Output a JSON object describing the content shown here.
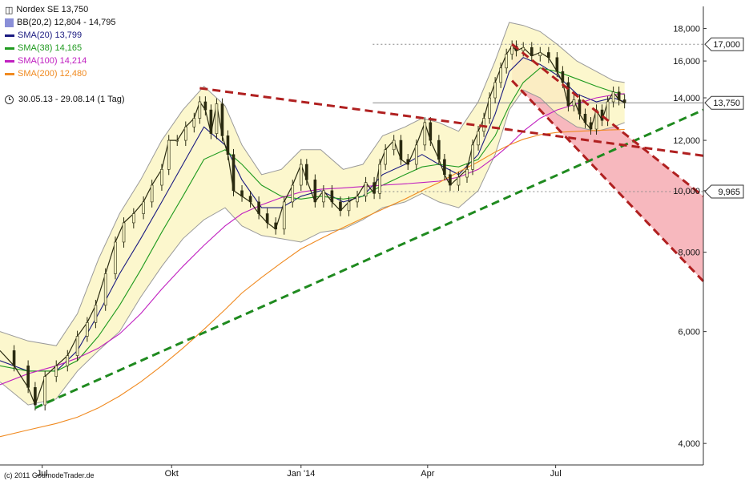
{
  "legend": {
    "title": "Nordex SE 13,750",
    "items": [
      {
        "label": "BB(20,2) 12,804 - 14,795",
        "color": "#8a8fd8",
        "kind": "box"
      },
      {
        "label": "SMA(20) 13,799",
        "color": "#1a1a80",
        "kind": "line"
      },
      {
        "label": "SMA(38) 14,165",
        "color": "#1f9a1f",
        "kind": "line"
      },
      {
        "label": "SMA(100) 14,214",
        "color": "#c020c0",
        "kind": "line"
      },
      {
        "label": "SMA(200) 12,480",
        "color": "#f08a20",
        "kind": "line"
      }
    ]
  },
  "date_range": "30.05.13 - 29.08.14 (1 Tag)",
  "copyright": "(c) 2011 GodmodeTrader.de",
  "chart_data": {
    "type": "line",
    "title": "Nordex SE 13,750",
    "y_scale": "log",
    "ylim": [
      3.7,
      19.5
    ],
    "y_ticks": [
      4,
      6,
      8,
      10,
      12,
      14,
      16,
      18
    ],
    "y_tick_labels": [
      "4,000",
      "6,000",
      "8,000",
      "10,000",
      "12,000",
      "14,000",
      "16,000",
      "18,000"
    ],
    "x_ticks": [
      {
        "label": "Jul",
        "t": 30
      },
      {
        "label": "Okt",
        "t": 122
      },
      {
        "label": "Jan '14",
        "t": 214
      },
      {
        "label": "Apr",
        "t": 304
      },
      {
        "label": "Jul",
        "t": 395
      }
    ],
    "xlim": [
      0,
      500
    ],
    "price_labels": [
      {
        "label": "17,000",
        "value": 17.0,
        "boxed": true,
        "color": "#111111"
      },
      {
        "label": "13,750",
        "value": 13.75,
        "boxed": true,
        "color": "#111111"
      },
      {
        "label": "9,965",
        "value": 9.965,
        "boxed": true,
        "color": "#111111"
      }
    ],
    "horizontal_lines": [
      {
        "value": 17.0,
        "style": "dotted",
        "color": "#888888",
        "from_t": 265
      },
      {
        "value": 13.75,
        "style": "solid",
        "color": "#888888",
        "from_t": 265
      },
      {
        "value": 9.965,
        "style": "dotted",
        "color": "#888888",
        "from_t": 265
      }
    ],
    "price": {
      "name": "Nordex SE",
      "color": "#2a2a10",
      "points": [
        [
          0,
          5.6
        ],
        [
          10,
          5.3
        ],
        [
          20,
          4.9
        ],
        [
          25,
          4.6
        ],
        [
          32,
          5.1
        ],
        [
          40,
          5.3
        ],
        [
          48,
          5.5
        ],
        [
          55,
          5.9
        ],
        [
          62,
          6.2
        ],
        [
          68,
          6.6
        ],
        [
          75,
          7.4
        ],
        [
          82,
          8.3
        ],
        [
          88,
          8.9
        ],
        [
          95,
          9.2
        ],
        [
          102,
          9.6
        ],
        [
          108,
          10.2
        ],
        [
          115,
          10.8
        ],
        [
          120,
          12.0
        ],
        [
          126,
          12.0
        ],
        [
          132,
          12.6
        ],
        [
          138,
          13.0
        ],
        [
          142,
          13.8
        ],
        [
          146,
          13.4
        ],
        [
          150,
          12.3
        ],
        [
          154,
          13.7
        ],
        [
          158,
          12.2
        ],
        [
          162,
          11.4
        ],
        [
          166,
          10.0
        ],
        [
          172,
          9.8
        ],
        [
          178,
          9.6
        ],
        [
          184,
          9.2
        ],
        [
          190,
          8.9
        ],
        [
          196,
          8.7
        ],
        [
          202,
          9.6
        ],
        [
          208,
          10.2
        ],
        [
          214,
          11.0
        ],
        [
          218,
          10.4
        ],
        [
          224,
          9.6
        ],
        [
          230,
          10.0
        ],
        [
          236,
          9.6
        ],
        [
          242,
          9.3
        ],
        [
          248,
          9.6
        ],
        [
          254,
          9.8
        ],
        [
          260,
          10.3
        ],
        [
          266,
          9.9
        ],
        [
          270,
          11.0
        ],
        [
          274,
          11.6
        ],
        [
          280,
          12.0
        ],
        [
          285,
          11.2
        ],
        [
          290,
          11.0
        ],
        [
          296,
          11.8
        ],
        [
          302,
          12.8
        ],
        [
          306,
          12.0
        ],
        [
          312,
          11.2
        ],
        [
          316,
          10.6
        ],
        [
          320,
          10.2
        ],
        [
          326,
          10.5
        ],
        [
          332,
          10.8
        ],
        [
          336,
          11.8
        ],
        [
          340,
          12.4
        ],
        [
          344,
          13.0
        ],
        [
          348,
          14.0
        ],
        [
          352,
          14.8
        ],
        [
          356,
          15.6
        ],
        [
          360,
          16.4
        ],
        [
          364,
          16.9
        ],
        [
          367,
          16.6
        ],
        [
          372,
          16.8
        ],
        [
          378,
          16.3
        ],
        [
          384,
          16.5
        ],
        [
          390,
          16.2
        ],
        [
          396,
          15.4
        ],
        [
          400,
          14.8
        ],
        [
          404,
          13.6
        ],
        [
          408,
          13.9
        ],
        [
          412,
          13.2
        ],
        [
          416,
          12.8
        ],
        [
          420,
          12.5
        ],
        [
          424,
          13.4
        ],
        [
          428,
          12.9
        ],
        [
          432,
          13.8
        ],
        [
          436,
          14.3
        ],
        [
          440,
          13.9
        ],
        [
          444,
          13.75
        ]
      ]
    },
    "bollinger": {
      "name": "BB(20,2)",
      "fill": "#fbf6c4",
      "stroke": "#9a9a9a",
      "upper": [
        [
          0,
          6.0
        ],
        [
          20,
          5.8
        ],
        [
          40,
          5.7
        ],
        [
          55,
          6.4
        ],
        [
          70,
          7.8
        ],
        [
          85,
          9.2
        ],
        [
          100,
          10.4
        ],
        [
          115,
          12.0
        ],
        [
          130,
          13.4
        ],
        [
          145,
          14.6
        ],
        [
          160,
          13.6
        ],
        [
          172,
          11.8
        ],
        [
          186,
          10.6
        ],
        [
          200,
          10.8
        ],
        [
          214,
          11.6
        ],
        [
          228,
          11.6
        ],
        [
          244,
          10.8
        ],
        [
          258,
          11.0
        ],
        [
          272,
          12.2
        ],
        [
          288,
          12.6
        ],
        [
          300,
          13.0
        ],
        [
          312,
          12.8
        ],
        [
          326,
          12.4
        ],
        [
          340,
          13.8
        ],
        [
          352,
          16.0
        ],
        [
          362,
          18.4
        ],
        [
          372,
          18.2
        ],
        [
          384,
          17.8
        ],
        [
          396,
          17.0
        ],
        [
          410,
          16.0
        ],
        [
          424,
          15.4
        ],
        [
          436,
          14.9
        ],
        [
          444,
          14.8
        ]
      ],
      "lower": [
        [
          0,
          5.0
        ],
        [
          20,
          4.6
        ],
        [
          40,
          4.7
        ],
        [
          55,
          5.2
        ],
        [
          70,
          5.6
        ],
        [
          85,
          6.0
        ],
        [
          100,
          6.8
        ],
        [
          115,
          7.6
        ],
        [
          130,
          8.4
        ],
        [
          145,
          9.0
        ],
        [
          160,
          9.4
        ],
        [
          172,
          8.8
        ],
        [
          186,
          8.5
        ],
        [
          200,
          8.4
        ],
        [
          214,
          8.3
        ],
        [
          228,
          8.6
        ],
        [
          244,
          8.7
        ],
        [
          258,
          9.0
        ],
        [
          272,
          9.4
        ],
        [
          288,
          9.6
        ],
        [
          300,
          9.9
        ],
        [
          312,
          9.6
        ],
        [
          326,
          9.4
        ],
        [
          340,
          10.0
        ],
        [
          352,
          11.4
        ],
        [
          362,
          13.4
        ],
        [
          372,
          14.4
        ],
        [
          384,
          14.0
        ],
        [
          396,
          13.2
        ],
        [
          410,
          12.6
        ],
        [
          424,
          12.4
        ],
        [
          436,
          12.6
        ],
        [
          444,
          12.8
        ]
      ]
    },
    "series": [
      {
        "name": "SMA(20)",
        "color": "#1a1a80",
        "points": [
          [
            0,
            5.4
          ],
          [
            20,
            5.2
          ],
          [
            40,
            5.2
          ],
          [
            55,
            5.6
          ],
          [
            70,
            6.4
          ],
          [
            85,
            7.4
          ],
          [
            100,
            8.4
          ],
          [
            115,
            9.6
          ],
          [
            130,
            11.0
          ],
          [
            145,
            12.6
          ],
          [
            160,
            11.8
          ],
          [
            172,
            10.4
          ],
          [
            186,
            9.4
          ],
          [
            200,
            9.4
          ],
          [
            214,
            9.8
          ],
          [
            228,
            10.0
          ],
          [
            244,
            9.6
          ],
          [
            258,
            9.8
          ],
          [
            272,
            10.6
          ],
          [
            288,
            11.0
          ],
          [
            300,
            11.4
          ],
          [
            312,
            11.0
          ],
          [
            326,
            10.6
          ],
          [
            340,
            11.4
          ],
          [
            352,
            13.2
          ],
          [
            362,
            15.4
          ],
          [
            372,
            16.2
          ],
          [
            384,
            15.8
          ],
          [
            396,
            15.2
          ],
          [
            410,
            14.2
          ],
          [
            424,
            13.8
          ],
          [
            436,
            14.0
          ],
          [
            444,
            13.8
          ]
        ]
      },
      {
        "name": "SMA(38)",
        "color": "#1f9a1f",
        "points": [
          [
            0,
            5.3
          ],
          [
            20,
            5.2
          ],
          [
            40,
            5.2
          ],
          [
            55,
            5.4
          ],
          [
            70,
            5.9
          ],
          [
            85,
            6.6
          ],
          [
            100,
            7.5
          ],
          [
            115,
            8.6
          ],
          [
            130,
            9.8
          ],
          [
            145,
            11.2
          ],
          [
            160,
            11.6
          ],
          [
            172,
            11.0
          ],
          [
            186,
            10.2
          ],
          [
            200,
            9.8
          ],
          [
            214,
            9.7
          ],
          [
            228,
            9.8
          ],
          [
            244,
            9.7
          ],
          [
            258,
            9.8
          ],
          [
            272,
            10.2
          ],
          [
            288,
            10.6
          ],
          [
            300,
            10.9
          ],
          [
            312,
            11.0
          ],
          [
            326,
            10.9
          ],
          [
            340,
            11.2
          ],
          [
            352,
            12.2
          ],
          [
            362,
            13.6
          ],
          [
            372,
            14.8
          ],
          [
            384,
            15.6
          ],
          [
            396,
            15.4
          ],
          [
            410,
            15.0
          ],
          [
            424,
            14.6
          ],
          [
            436,
            14.3
          ],
          [
            444,
            14.165
          ]
        ]
      },
      {
        "name": "SMA(100)",
        "color": "#c020c0",
        "points": [
          [
            0,
            4.95
          ],
          [
            20,
            5.15
          ],
          [
            40,
            5.3
          ],
          [
            55,
            5.45
          ],
          [
            70,
            5.65
          ],
          [
            85,
            5.95
          ],
          [
            100,
            6.4
          ],
          [
            115,
            7.0
          ],
          [
            130,
            7.6
          ],
          [
            145,
            8.2
          ],
          [
            160,
            8.8
          ],
          [
            172,
            9.2
          ],
          [
            186,
            9.5
          ],
          [
            200,
            9.75
          ],
          [
            214,
            9.95
          ],
          [
            228,
            10.05
          ],
          [
            244,
            10.1
          ],
          [
            258,
            10.15
          ],
          [
            272,
            10.2
          ],
          [
            288,
            10.25
          ],
          [
            300,
            10.3
          ],
          [
            312,
            10.35
          ],
          [
            326,
            10.5
          ],
          [
            340,
            10.8
          ],
          [
            352,
            11.3
          ],
          [
            362,
            11.8
          ],
          [
            372,
            12.4
          ],
          [
            384,
            13.0
          ],
          [
            396,
            13.4
          ],
          [
            410,
            13.7
          ],
          [
            424,
            14.0
          ],
          [
            436,
            14.15
          ],
          [
            444,
            14.214
          ]
        ]
      },
      {
        "name": "SMA(200)",
        "color": "#f08a20",
        "points": [
          [
            0,
            4.1
          ],
          [
            20,
            4.2
          ],
          [
            40,
            4.3
          ],
          [
            55,
            4.4
          ],
          [
            70,
            4.55
          ],
          [
            85,
            4.75
          ],
          [
            100,
            5.0
          ],
          [
            115,
            5.3
          ],
          [
            130,
            5.65
          ],
          [
            145,
            6.05
          ],
          [
            160,
            6.5
          ],
          [
            172,
            6.9
          ],
          [
            186,
            7.3
          ],
          [
            200,
            7.7
          ],
          [
            214,
            8.1
          ],
          [
            228,
            8.4
          ],
          [
            244,
            8.75
          ],
          [
            258,
            9.05
          ],
          [
            272,
            9.35
          ],
          [
            288,
            9.7
          ],
          [
            300,
            10.0
          ],
          [
            312,
            10.3
          ],
          [
            326,
            10.7
          ],
          [
            340,
            11.1
          ],
          [
            352,
            11.5
          ],
          [
            362,
            11.8
          ],
          [
            372,
            12.05
          ],
          [
            384,
            12.25
          ],
          [
            396,
            12.35
          ],
          [
            410,
            12.4
          ],
          [
            424,
            12.44
          ],
          [
            436,
            12.47
          ],
          [
            444,
            12.48
          ]
        ]
      }
    ],
    "trendlines": [
      {
        "name": "support-trendline",
        "color": "#1f8a1f",
        "dash": "10,6",
        "from": [
          25,
          4.55
        ],
        "to": [
          500,
          13.4
        ]
      },
      {
        "name": "resistance-trendline",
        "color": "#b02020",
        "dash": "10,6",
        "from": [
          142,
          14.5
        ],
        "to": [
          500,
          11.35
        ]
      },
      {
        "name": "channel-upper-line",
        "color": "#b02020",
        "dash": "10,6",
        "from": [
          364,
          17.0
        ],
        "to": [
          500,
          9.8
        ]
      },
      {
        "name": "channel-lower-line",
        "color": "#b02020",
        "dash": "10,6",
        "from": [
          364,
          14.9
        ],
        "to": [
          500,
          7.2
        ]
      }
    ],
    "channel_projection": {
      "color": "#f4a0a8",
      "from_t": 364,
      "to_t": 500
    }
  }
}
